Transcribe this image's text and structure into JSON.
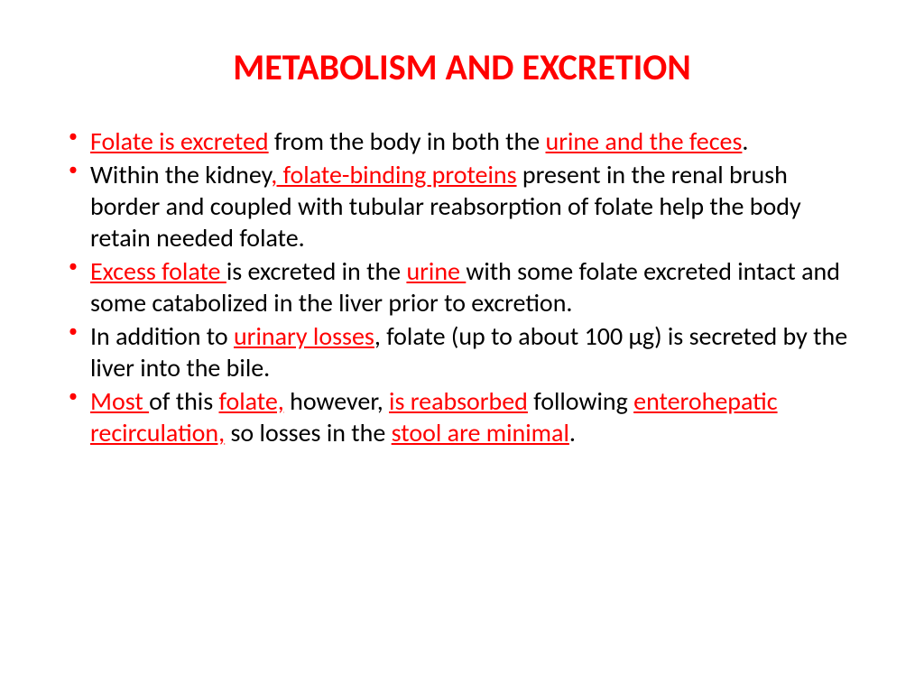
{
  "title": {
    "text": "METABOLISM AND EXCRETION",
    "color": "#ff0000",
    "fontsize": 40
  },
  "bullet_color": "#ff0000",
  "body_fontsize": 28,
  "text_color": "#000000",
  "highlight_color": "#ff0000",
  "bullets": [
    {
      "runs": [
        {
          "t": "Folate is excreted",
          "hl": true,
          "u": true
        },
        {
          "t": " from the body in both the ",
          "hl": false,
          "u": false
        },
        {
          "t": "urine and the feces",
          "hl": true,
          "u": true
        },
        {
          "t": ".",
          "hl": false,
          "u": false
        }
      ]
    },
    {
      "runs": [
        {
          "t": "Within the kidney",
          "hl": false,
          "u": false
        },
        {
          "t": ", folate-binding proteins",
          "hl": true,
          "u": true
        },
        {
          "t": " present in the renal brush border and coupled with tubular reabsorption of folate help the body retain needed folate.",
          "hl": false,
          "u": false
        }
      ]
    },
    {
      "runs": [
        {
          "t": "Excess folate ",
          "hl": true,
          "u": true
        },
        {
          "t": "is excreted in the ",
          "hl": false,
          "u": false
        },
        {
          "t": "urine ",
          "hl": true,
          "u": true
        },
        {
          "t": "with some folate excreted intact and some catabolized in the liver prior to excretion.",
          "hl": false,
          "u": false
        }
      ]
    },
    {
      "runs": [
        {
          "t": "In addition to ",
          "hl": false,
          "u": false
        },
        {
          "t": "urinary losses",
          "hl": true,
          "u": true
        },
        {
          "t": ", folate (up to about 100 μg) is secreted by the liver into the bile.",
          "hl": false,
          "u": false
        }
      ]
    },
    {
      "runs": [
        {
          "t": "Most ",
          "hl": true,
          "u": true
        },
        {
          "t": "of this ",
          "hl": false,
          "u": false
        },
        {
          "t": "folate,",
          "hl": true,
          "u": true
        },
        {
          "t": " however, ",
          "hl": false,
          "u": false
        },
        {
          "t": "is reabsorbed",
          "hl": true,
          "u": true
        },
        {
          "t": " following ",
          "hl": false,
          "u": false
        },
        {
          "t": "enterohepatic",
          "hl": true,
          "u": true
        },
        {
          "t": " ",
          "hl": false,
          "u": false
        },
        {
          "t": "recirculation,",
          "hl": true,
          "u": true
        },
        {
          "t": " so losses in the ",
          "hl": false,
          "u": false
        },
        {
          "t": "stool are minimal",
          "hl": true,
          "u": true
        },
        {
          "t": ".",
          "hl": false,
          "u": false
        }
      ]
    }
  ]
}
